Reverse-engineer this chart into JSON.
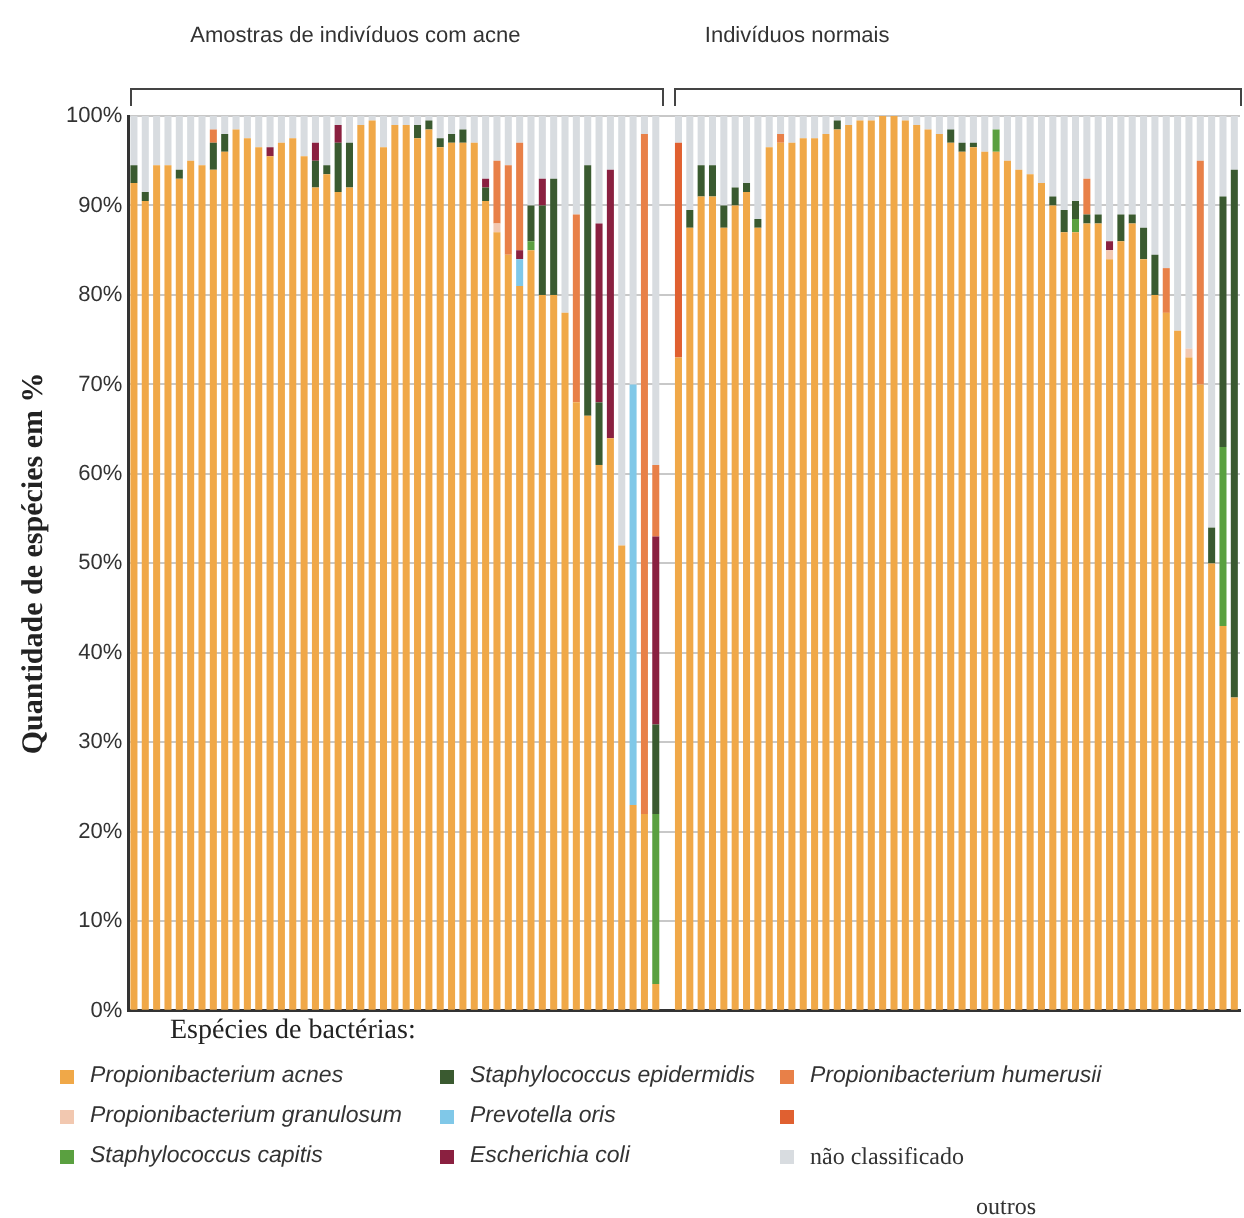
{
  "chart_data": {
    "type": "bar",
    "stacked": true,
    "ylabel": "Quantidade de espécies em %",
    "legend_title": "Espécies de bactérias:",
    "legend": "bottom",
    "grid": "y",
    "tick_labels": "y",
    "annotations": [
      "Amostras de indivíduos com acne",
      "Indivíduos normais",
      "outros"
    ],
    "categories": [
      null,
      null,
      null,
      null,
      null,
      null,
      null,
      null,
      null,
      null,
      null,
      null,
      null,
      null,
      null,
      null,
      null,
      null,
      null,
      null,
      null,
      null,
      null,
      null,
      null,
      null,
      null,
      null,
      null,
      null,
      null,
      null,
      null,
      null,
      null,
      null,
      null,
      null,
      null,
      null,
      null,
      null,
      null,
      null,
      null,
      null,
      null,
      null,
      null,
      null,
      null,
      null,
      null,
      null,
      null,
      null,
      null,
      null,
      null,
      null,
      null,
      null,
      null,
      null,
      null,
      null,
      null,
      null,
      null,
      null,
      null,
      null,
      null,
      null,
      null,
      null,
      null,
      null,
      null,
      null,
      null,
      null,
      null,
      null,
      null,
      null,
      null,
      null,
      null,
      null,
      null,
      null,
      null,
      null,
      null,
      null,
      null,
      null
    ],
    "ylim": [
      0,
      100
    ],
    "yticks": [
      {
        "value": 0,
        "label": "0%"
      },
      {
        "value": 10,
        "label": "10%"
      },
      {
        "value": 20,
        "label": "20%"
      },
      {
        "value": 30,
        "label": "30%"
      },
      {
        "value": 40,
        "label": "40%"
      },
      {
        "value": 50,
        "label": "50%"
      },
      {
        "value": 60,
        "label": "60%"
      },
      {
        "value": 70,
        "label": "70%"
      },
      {
        "value": 80,
        "label": "80%"
      },
      {
        "value": 90,
        "label": "90%"
      },
      {
        "value": 100,
        "label": "100%"
      }
    ],
    "series": [
      {
        "name": "Propionibacterium acnes",
        "color": "#f0a848",
        "values": [
          92.5,
          90.5,
          94.5,
          94.5,
          93,
          95,
          94.5,
          94,
          96,
          98.5,
          97.5,
          96.5,
          95.5,
          97,
          97.5,
          95.5,
          92,
          93.5,
          91.5,
          92,
          99,
          99.5,
          96.5,
          99,
          99,
          97.5,
          98.5,
          96.5,
          97,
          97,
          97,
          90.5,
          87,
          84.5,
          81,
          85,
          80,
          80,
          78,
          68,
          66.5,
          61,
          64,
          52,
          23,
          22,
          3,
          null,
          73,
          87.5,
          91,
          91,
          87.5,
          90,
          91.5,
          87.5,
          96.5,
          97,
          97,
          97.5,
          97.5,
          98,
          98.5,
          99,
          99.5,
          99.5,
          100,
          100,
          99.5,
          99,
          98.5,
          98,
          97,
          96,
          96.5,
          96,
          96,
          95,
          94,
          93.5,
          92.5,
          90,
          87,
          87,
          88,
          88,
          84,
          86,
          88,
          84,
          80,
          78,
          76,
          73,
          70,
          50,
          43,
          35
        ]
      },
      {
        "name": "Propionibacterium granulosum",
        "color": "#f2c8b0",
        "values": [
          0,
          0,
          0,
          0,
          0,
          0,
          0,
          0,
          0,
          0,
          0,
          0,
          0,
          0,
          0,
          0,
          0,
          0,
          0,
          0,
          0,
          0,
          0,
          0,
          0,
          0,
          0,
          0,
          0,
          0,
          0,
          0,
          1,
          0,
          0,
          0,
          0,
          0,
          0,
          0,
          0,
          0,
          0,
          0,
          0,
          0,
          0,
          null,
          0,
          0,
          0,
          0,
          0,
          0,
          0,
          0,
          0,
          0,
          0,
          0,
          0,
          0,
          0,
          0,
          0,
          0,
          0,
          0,
          0,
          0,
          0,
          0,
          0,
          0,
          0,
          0,
          0,
          0,
          0,
          0,
          0,
          0,
          0,
          0,
          0,
          0,
          1,
          0,
          0,
          0,
          0,
          0,
          0,
          1,
          0,
          0,
          0,
          0
        ]
      },
      {
        "name": "Staphylococcus capitis",
        "color": "#5aa040",
        "values": [
          0,
          0,
          0,
          0,
          0,
          0,
          0,
          0,
          0,
          0,
          0,
          0,
          0,
          0,
          0,
          0,
          0,
          0,
          0,
          0,
          0,
          0,
          0,
          0,
          0,
          0,
          0,
          0,
          0,
          0,
          0,
          0,
          0,
          0,
          0,
          1,
          0,
          0,
          0,
          0,
          0,
          0,
          0,
          0,
          0,
          0,
          19,
          null,
          0,
          0,
          0,
          0,
          0,
          0,
          0,
          0,
          0,
          0,
          0,
          0,
          0,
          0,
          0,
          0,
          0,
          0,
          0,
          0,
          0,
          0,
          0,
          0,
          0,
          0,
          0,
          0,
          2.5,
          0,
          0,
          0,
          0,
          0,
          0,
          1.5,
          0,
          0,
          0,
          0,
          0,
          0,
          0,
          0,
          0,
          0,
          0,
          0,
          20,
          0
        ]
      },
      {
        "name": "Staphylococcus epidermidis",
        "color": "#3a5a30",
        "values": [
          2,
          1,
          0,
          0,
          1,
          0,
          0,
          3,
          2,
          0,
          0,
          0,
          0,
          0,
          0,
          0,
          3,
          1,
          5.5,
          5,
          0,
          0,
          0,
          0,
          0,
          1.5,
          1,
          1,
          1,
          1.5,
          0,
          1.5,
          0,
          0,
          0,
          4,
          10,
          13,
          0,
          0,
          28,
          7,
          0,
          0,
          0,
          0,
          10,
          null,
          0,
          2,
          3.5,
          3.5,
          2.5,
          2,
          1,
          1,
          0,
          0,
          0,
          0,
          0,
          0,
          1,
          0,
          0,
          0,
          0,
          0,
          0,
          0,
          0,
          0,
          1.5,
          1,
          0.5,
          0,
          0,
          0,
          0,
          0,
          0,
          1,
          2.5,
          2,
          1,
          1,
          0,
          3,
          1,
          3.5,
          4.5,
          0,
          0,
          0,
          0,
          4,
          28,
          59
        ]
      },
      {
        "name": "Prevotella oris",
        "color": "#80c8e8",
        "values": [
          0,
          0,
          0,
          0,
          0,
          0,
          0,
          0,
          0,
          0,
          0,
          0,
          0,
          0,
          0,
          0,
          0,
          0,
          0,
          0,
          0,
          0,
          0,
          0,
          0,
          0,
          0,
          0,
          0,
          0,
          0,
          0,
          0,
          0,
          3,
          0,
          0,
          0,
          0,
          0,
          0,
          0,
          0,
          0,
          47,
          0,
          0,
          null,
          0,
          0,
          0,
          0,
          0,
          0,
          0,
          0,
          0,
          0,
          0,
          0,
          0,
          0,
          0,
          0,
          0,
          0,
          0,
          0,
          0,
          0,
          0,
          0,
          0,
          0,
          0,
          0,
          0,
          0,
          0,
          0,
          0,
          0,
          0,
          0,
          0,
          0,
          0,
          0,
          0,
          0,
          0,
          0,
          0,
          0,
          0,
          0,
          0,
          0
        ]
      },
      {
        "name": "Escherichia coli",
        "color": "#8a2040",
        "values": [
          0,
          0,
          0,
          0,
          0,
          0,
          0,
          0,
          0,
          0,
          0,
          0,
          1,
          0,
          0,
          0,
          2,
          0,
          2,
          0,
          0,
          0,
          0,
          0,
          0,
          0,
          0,
          0,
          0,
          0,
          0,
          1,
          0,
          0,
          1,
          0,
          3,
          0,
          0,
          0,
          0,
          20,
          30,
          0,
          0,
          0,
          21,
          null,
          0,
          0,
          0,
          0,
          0,
          0,
          0,
          0,
          0,
          0,
          0,
          0,
          0,
          0,
          0,
          0,
          0,
          0,
          0,
          0,
          0,
          0,
          0,
          0,
          0,
          0,
          0,
          0,
          0,
          0,
          0,
          0,
          0,
          0,
          0,
          0,
          0,
          0,
          1,
          0,
          0,
          0,
          0,
          0,
          0,
          0,
          0,
          0,
          0,
          0
        ]
      },
      {
        "name": "Propionibacterium humerusii",
        "color": "#e88048",
        "values": [
          0,
          0,
          0,
          0,
          0,
          0,
          0,
          1.5,
          0,
          0,
          0,
          0,
          0,
          0,
          0,
          0,
          0,
          0,
          0,
          0,
          0,
          0,
          0,
          0,
          0,
          0,
          0,
          0,
          0,
          0,
          0,
          0,
          7,
          10,
          12,
          0,
          0,
          0,
          0,
          21,
          0,
          0,
          0,
          0,
          0,
          76,
          8,
          null,
          0,
          0,
          0,
          0,
          0,
          0,
          0,
          0,
          0,
          1,
          0,
          0,
          0,
          0,
          0,
          0,
          0,
          0,
          0,
          0,
          0,
          0,
          0,
          0,
          0,
          0,
          0,
          0,
          0,
          0,
          0,
          0,
          0,
          0,
          0,
          0,
          4,
          0,
          0,
          0,
          0,
          0,
          0,
          5,
          0,
          0,
          25,
          0,
          0,
          0
        ]
      },
      {
        "color": "#e06030",
        "values": [
          0,
          0,
          0,
          0,
          0,
          0,
          0,
          0,
          0,
          0,
          0,
          0,
          0,
          0,
          0,
          0,
          0,
          0,
          0,
          0,
          0,
          0,
          0,
          0,
          0,
          0,
          0,
          0,
          0,
          0,
          0,
          0,
          0,
          0,
          0,
          0,
          0,
          0,
          0,
          0,
          0,
          0,
          0,
          0,
          0,
          0,
          0,
          null,
          24,
          0,
          0,
          0,
          0,
          0,
          0,
          0,
          0,
          0,
          0,
          0,
          0,
          0,
          0,
          0,
          0,
          0,
          0,
          0,
          0,
          0,
          0,
          0,
          0,
          0,
          0,
          0,
          0,
          0,
          0,
          0,
          0,
          0,
          0,
          0,
          0,
          0,
          0,
          0,
          0,
          0,
          0,
          0,
          0,
          0,
          0,
          0,
          0,
          0
        ]
      },
      {
        "name": "não classificado",
        "color": "#d8dce0",
        "values": [
          5.5,
          8.5,
          5.5,
          5.5,
          6,
          5,
          5.5,
          1.5,
          2,
          1.5,
          2.5,
          3.5,
          3.5,
          3,
          2.5,
          4.5,
          3,
          5.5,
          1,
          3,
          1,
          0.5,
          3.5,
          1,
          1,
          1,
          0.5,
          2.5,
          2,
          1.5,
          3,
          7,
          5,
          5.5,
          3,
          10,
          7,
          7,
          22,
          11,
          5.5,
          12,
          6,
          48,
          30,
          2,
          39,
          null,
          3,
          10.5,
          5.5,
          5.5,
          10,
          8,
          7.5,
          11.5,
          3.5,
          2,
          3,
          2.5,
          2.5,
          2,
          0.5,
          1,
          0.5,
          0.5,
          0,
          0,
          0.5,
          1,
          1.5,
          2,
          1.5,
          3,
          3,
          4,
          1.5,
          5,
          6,
          6.5,
          7.5,
          9,
          10.5,
          9.5,
          7,
          11,
          14,
          11,
          11,
          12.5,
          15.5,
          17,
          24,
          26,
          5,
          46,
          9,
          6
        ]
      }
    ]
  }
}
